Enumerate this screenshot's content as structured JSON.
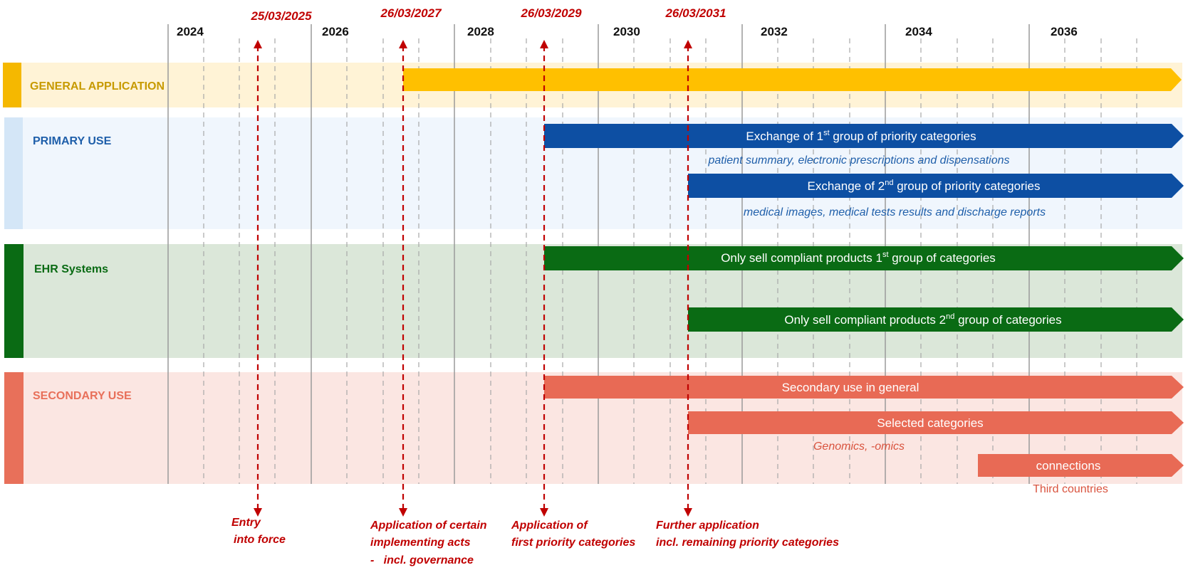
{
  "timeline": {
    "years": [
      "2024",
      "2026",
      "2028",
      "2030",
      "2032",
      "2034",
      "2036"
    ]
  },
  "milestones": [
    {
      "date": "25/03/2025",
      "caption": [
        "Entry",
        "into force"
      ]
    },
    {
      "date": "26/03/2027",
      "caption": [
        "Application of certain",
        "implementing acts",
        "-   incl. governance"
      ]
    },
    {
      "date": "26/03/2029",
      "caption": [
        "Application of",
        "first priority categories"
      ]
    },
    {
      "date": "26/03/2031",
      "caption": [
        "Further application",
        "incl. remaining priority categories"
      ]
    }
  ],
  "rows": {
    "general": {
      "label": "GENERAL APPLICATION",
      "color": "#f5b800",
      "band": "#fff3d6"
    },
    "primary": {
      "label": "PRIMARY USE",
      "color": "#1f5faa",
      "band": "#eef5fc",
      "bar1": {
        "pre": "Exchange of 1",
        "sup": "st",
        "post": "  group of priority categories"
      },
      "note1": "patient summary, electronic prescriptions and dispensations",
      "bar2": {
        "pre": "Exchange of 2",
        "sup": "nd",
        "post": " group of priority categories"
      },
      "note2": "medical images, medical tests results and discharge reports"
    },
    "ehr": {
      "label": "EHR Systems",
      "color": "#0a6b14",
      "band": "#dbe7d9",
      "bar1": {
        "pre": "Only sell compliant products 1",
        "sup": "st",
        "post": " group of categories"
      },
      "bar2": {
        "pre": "Only sell compliant products 2",
        "sup": "nd",
        "post": " group of categories"
      }
    },
    "secondary": {
      "label": "SECONDARY USE",
      "color": "#e8705a",
      "band": "#fbe6e2",
      "bar1": "Secondary use in general",
      "bar2": "Selected categories",
      "note2": "Genomics, -omics",
      "bar3": "connections",
      "note3": "Third countries"
    }
  },
  "colors": {
    "milestone": "#c00000",
    "general_accent": "#c79a00",
    "primary_band_accent": "#d4e6f7",
    "primary_bar": "#0d4fa3",
    "ehr_bar": "#0a6b14",
    "secondary_bar": "#e86a55"
  }
}
